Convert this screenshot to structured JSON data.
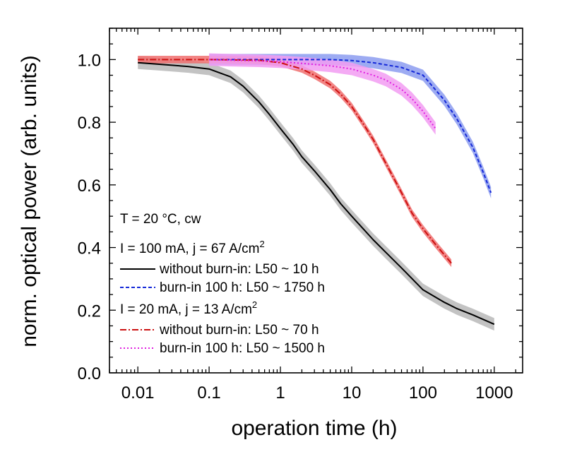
{
  "chart_data": {
    "type": "line",
    "xlabel": "operation time (h)",
    "ylabel": "norm. optical power (arb. units)",
    "xscale": "log",
    "xlim": [
      0.004,
      2500
    ],
    "ylim": [
      0.0,
      1.1
    ],
    "xticks": [
      0.01,
      0.1,
      1,
      10,
      100,
      1000
    ],
    "xtick_labels": [
      "0.01",
      "0.1",
      "1",
      "10",
      "100",
      "1000"
    ],
    "yticks": [
      0.0,
      0.2,
      0.4,
      0.6,
      0.8,
      1.0
    ],
    "ytick_labels": [
      "0.0",
      "0.2",
      "0.4",
      "0.6",
      "0.8",
      "1.0"
    ],
    "grid": false,
    "legend": {
      "placement": "lower-left",
      "header1": "T = 20 °C, cw",
      "group1_prefix": "I = 100 mA, j = 67 A/cm",
      "group1_sup": "2",
      "group2_prefix": "I = 20 mA, j = 13 A/cm",
      "group2_sup": "2",
      "entries": [
        "without burn-in: L50 ~ 10 h",
        "burn-in 100 h: L50 ~ 1750 h",
        "without burn-in: L50 ~ 70 h",
        "burn-in 100 h: L50 ~ 1500 h"
      ]
    },
    "series": [
      {
        "name": "without burn-in: L50 ~ 10 h",
        "color": "#000000",
        "band_color": "#b8b8b8",
        "band_width": 0.02,
        "dash": "",
        "x": [
          0.01,
          0.02,
          0.05,
          0.1,
          0.2,
          0.3,
          0.5,
          0.7,
          1,
          1.5,
          2,
          3,
          5,
          7,
          10,
          20,
          30,
          50,
          100,
          200,
          300,
          500,
          1000
        ],
        "y": [
          0.99,
          0.985,
          0.978,
          0.97,
          0.945,
          0.915,
          0.865,
          0.825,
          0.78,
          0.73,
          0.69,
          0.645,
          0.585,
          0.54,
          0.5,
          0.425,
          0.385,
          0.335,
          0.265,
          0.225,
          0.205,
          0.185,
          0.155
        ]
      },
      {
        "name": "burn-in 100 h: L50 ~ 1750 h",
        "color": "#1428d8",
        "band_color": "#8c9cf0",
        "band_width": 0.018,
        "dash": "5,3",
        "x": [
          0.1,
          0.2,
          0.5,
          1,
          2,
          5,
          10,
          20,
          50,
          100,
          200,
          300,
          500,
          700,
          900
        ],
        "y": [
          1.0,
          1.0,
          1.0,
          1.0,
          1.0,
          1.0,
          0.997,
          0.99,
          0.975,
          0.95,
          0.87,
          0.81,
          0.72,
          0.64,
          0.575
        ]
      },
      {
        "name": "without burn-in: L50 ~ 70 h",
        "color": "#cc1010",
        "band_color": "#f07070",
        "band_width": 0.012,
        "dash": "9,3,2,3",
        "x": [
          0.01,
          0.05,
          0.1,
          0.5,
          1,
          2,
          3,
          5,
          7,
          10,
          15,
          20,
          30,
          50,
          70,
          100,
          150,
          250
        ],
        "y": [
          1.0,
          1.0,
          1.0,
          0.998,
          0.99,
          0.97,
          0.95,
          0.92,
          0.89,
          0.85,
          0.79,
          0.745,
          0.67,
          0.575,
          0.51,
          0.46,
          0.41,
          0.35
        ]
      },
      {
        "name": "burn-in 100 h: L50 ~ 1500 h",
        "color": "#e020e0",
        "band_color": "#f29cf2",
        "band_width": 0.02,
        "dash": "2,3",
        "x": [
          0.1,
          0.2,
          0.5,
          1,
          2,
          5,
          10,
          20,
          30,
          50,
          70,
          100,
          150
        ],
        "y": [
          1.0,
          0.998,
          0.996,
          0.993,
          0.988,
          0.98,
          0.97,
          0.95,
          0.935,
          0.905,
          0.875,
          0.835,
          0.78
        ]
      }
    ]
  }
}
